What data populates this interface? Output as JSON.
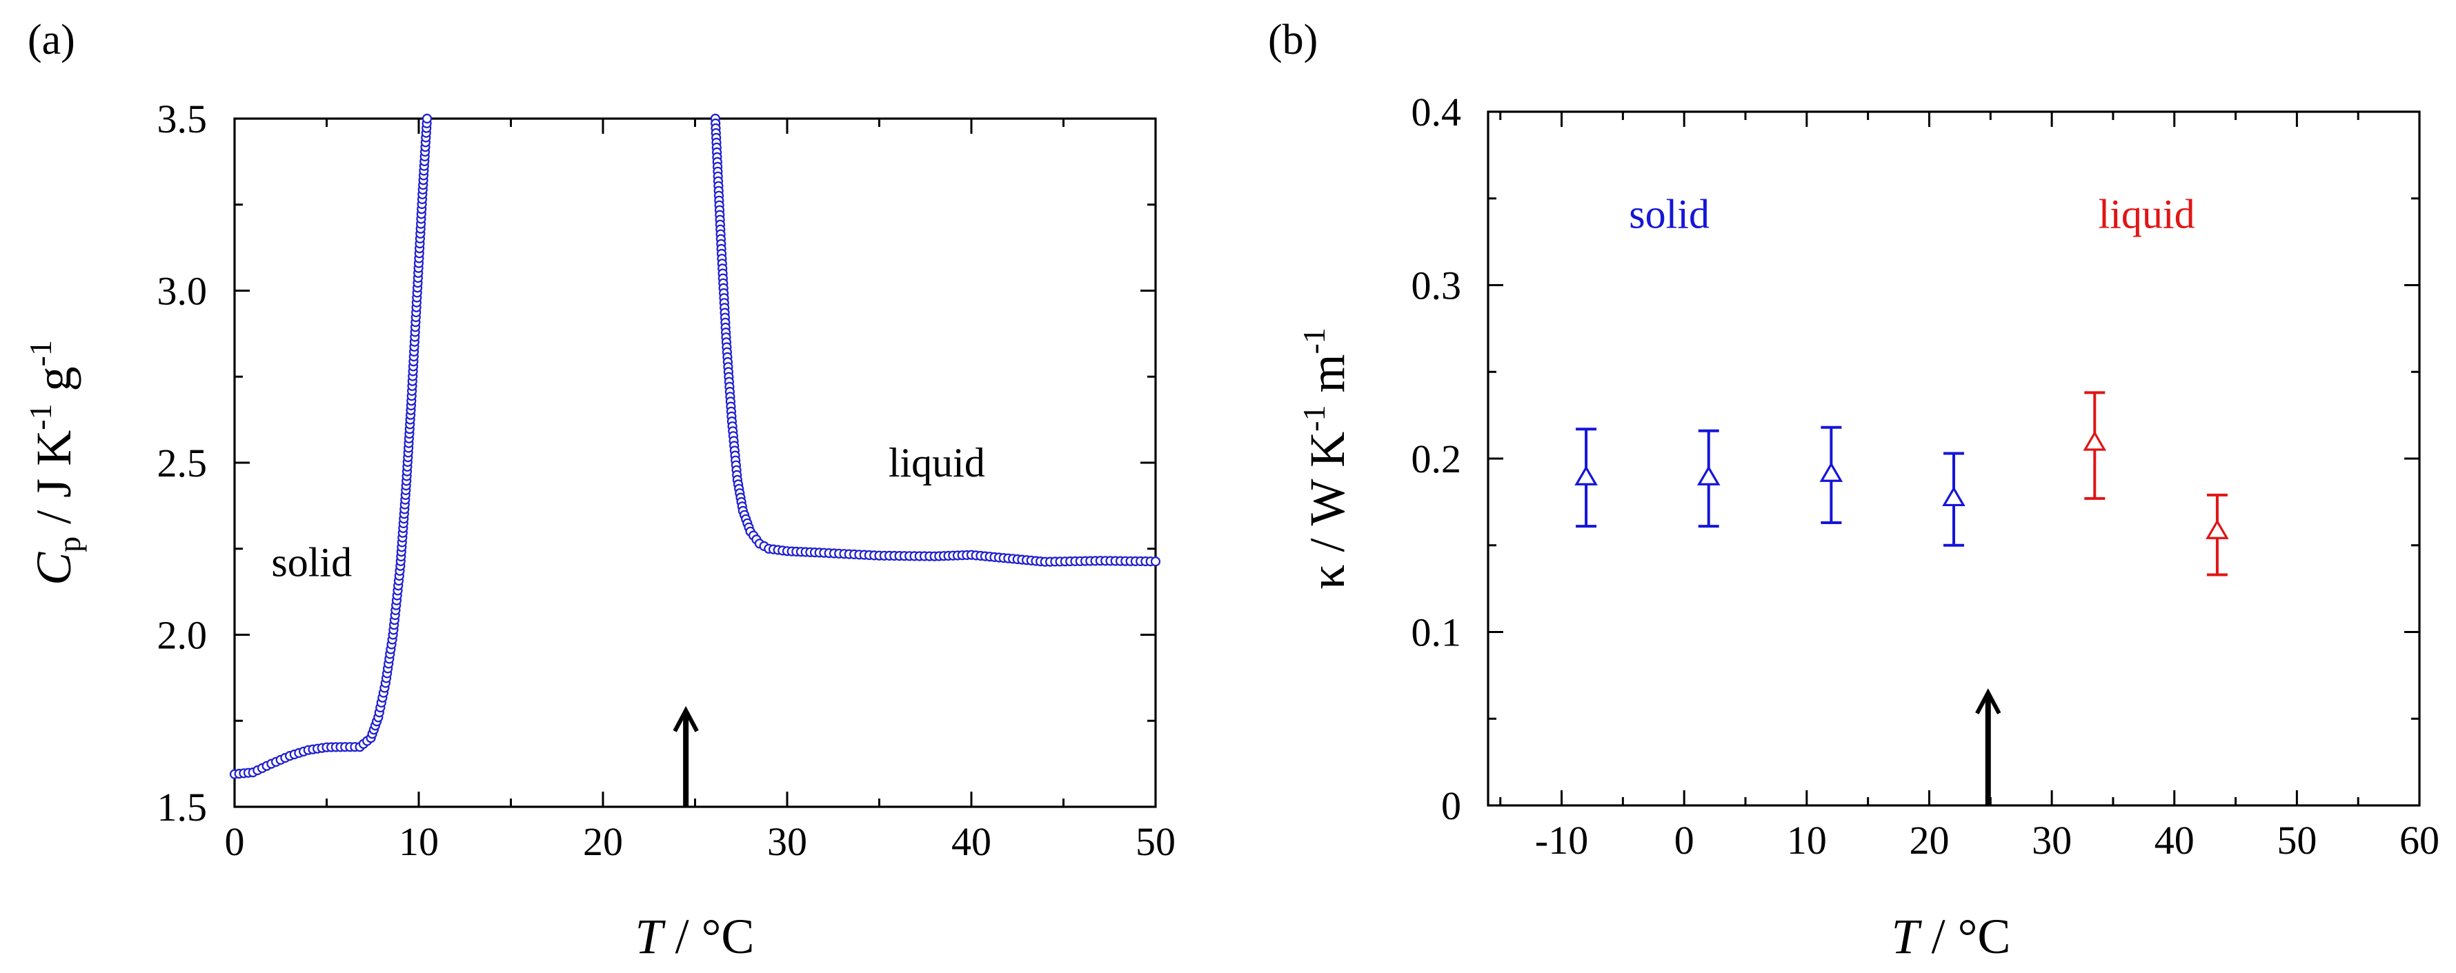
{
  "chart_data": [
    {
      "panel_label": "(a)",
      "type": "scatter",
      "xlabel": {
        "var": "T",
        "unit": " / °C"
      },
      "ylabel": {
        "var": "C",
        "sub": "p",
        "unit": " / J K",
        "sup1": "-1",
        "unit2": " g",
        "sup2": "-1"
      },
      "xlim": [
        0,
        50
      ],
      "ylim": [
        1.5,
        3.5
      ],
      "xticks": [
        0,
        10,
        20,
        30,
        40,
        50
      ],
      "xtick_labels": [
        "0",
        "10",
        "20",
        "30",
        "40",
        "50"
      ],
      "yticks": [
        1.5,
        2.0,
        2.5,
        3.0,
        3.5
      ],
      "ytick_labels": [
        "1.5",
        "2.0",
        "2.5",
        "3.0",
        "3.5"
      ],
      "series": [
        {
          "name": "Cp",
          "color": "#1f1fd0",
          "marker": "open-circle",
          "line": true,
          "curve_points": [
            [
              0.0,
              1.595
            ],
            [
              1.0,
              1.6
            ],
            [
              2.0,
              1.625
            ],
            [
              3.0,
              1.648
            ],
            [
              4.0,
              1.665
            ],
            [
              5.0,
              1.673
            ],
            [
              6.0,
              1.674
            ],
            [
              6.8,
              1.674
            ],
            [
              7.4,
              1.7
            ],
            [
              7.8,
              1.76
            ],
            [
              8.2,
              1.86
            ],
            [
              8.6,
              2.0
            ],
            [
              9.0,
              2.2
            ],
            [
              9.3,
              2.42
            ],
            [
              9.6,
              2.68
            ],
            [
              9.9,
              2.98
            ],
            [
              10.2,
              3.28
            ],
            [
              10.45,
              3.5
            ]
          ],
          "curve_points_2": [
            [
              26.1,
              3.5
            ],
            [
              26.4,
              3.15
            ],
            [
              26.7,
              2.85
            ],
            [
              27.0,
              2.62
            ],
            [
              27.3,
              2.45
            ],
            [
              27.6,
              2.36
            ],
            [
              28.0,
              2.3
            ],
            [
              28.5,
              2.265
            ],
            [
              29.0,
              2.25
            ],
            [
              30.0,
              2.243
            ],
            [
              32.0,
              2.238
            ],
            [
              35.0,
              2.23
            ],
            [
              38.0,
              2.228
            ],
            [
              40.0,
              2.232
            ],
            [
              42.0,
              2.222
            ],
            [
              44.0,
              2.212
            ],
            [
              47.0,
              2.215
            ],
            [
              50.0,
              2.213
            ]
          ]
        }
      ],
      "annotations": [
        {
          "text": "solid",
          "x": 2.0,
          "y": 2.17,
          "color": "#000000"
        },
        {
          "text": "liquid",
          "x": 35.5,
          "y": 2.46,
          "color": "#000000"
        }
      ],
      "arrow": {
        "x": 24.5,
        "y_from": 1.5,
        "y_to": 1.78,
        "color": "#000000"
      }
    },
    {
      "panel_label": "(b)",
      "type": "scatter",
      "xlabel": {
        "var": "T",
        "unit": " / °C"
      },
      "ylabel": {
        "text": "κ / W K",
        "sup1": "-1",
        "unit2": " m",
        "sup2": "-1"
      },
      "xlim": [
        -16,
        60
      ],
      "ylim": [
        0,
        0.4
      ],
      "xticks": [
        -10,
        0,
        10,
        20,
        30,
        40,
        50,
        60
      ],
      "xtick_labels": [
        "-10",
        "0",
        "10",
        "20",
        "30",
        "40",
        "50",
        "60"
      ],
      "yticks": [
        0,
        0.1,
        0.2,
        0.3,
        0.4
      ],
      "ytick_labels": [
        "0",
        "0.1",
        "0.2",
        "0.3",
        "0.4"
      ],
      "series": [
        {
          "name": "solid",
          "color": "#1515d8",
          "marker": "open-triangle",
          "points": [
            {
              "x": -8,
              "y": 0.189,
              "ylo": 0.161,
              "yhi": 0.217
            },
            {
              "x": 2,
              "y": 0.189,
              "ylo": 0.161,
              "yhi": 0.216
            },
            {
              "x": 12,
              "y": 0.191,
              "ylo": 0.163,
              "yhi": 0.218
            },
            {
              "x": 22,
              "y": 0.177,
              "ylo": 0.15,
              "yhi": 0.203
            }
          ]
        },
        {
          "name": "liquid",
          "color": "#e01515",
          "marker": "open-triangle",
          "points": [
            {
              "x": 33.5,
              "y": 0.209,
              "ylo": 0.177,
              "yhi": 0.238
            },
            {
              "x": 43.5,
              "y": 0.158,
              "ylo": 0.133,
              "yhi": 0.179
            }
          ]
        }
      ],
      "annotations": [
        {
          "text": "solid",
          "x": -4.5,
          "y": 0.333,
          "color": "#1515d8"
        },
        {
          "text": "liquid",
          "x": 33.8,
          "y": 0.333,
          "color": "#e01515"
        }
      ],
      "arrow": {
        "x": 24.8,
        "y_from": 0.0,
        "y_to": 0.065,
        "color": "#000000"
      }
    }
  ]
}
